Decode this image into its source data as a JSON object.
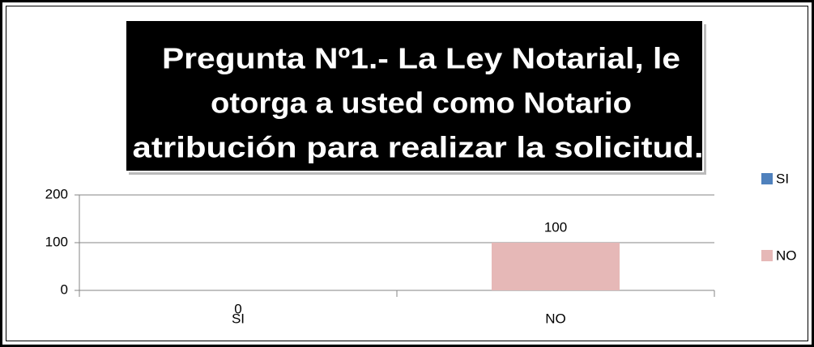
{
  "chart_data": {
    "type": "bar",
    "title": [
      "Pregunta Nº1.- La Ley Notarial, le",
      "otorga a usted como Notario",
      "atribución para realizar la solicitud."
    ],
    "categories": [
      "SI",
      "NO"
    ],
    "series": [
      {
        "name": "SI",
        "color": "#4f81bd",
        "values": [
          0,
          null
        ]
      },
      {
        "name": "NO",
        "color": "#e6b8b7",
        "values": [
          null,
          100
        ]
      }
    ],
    "ylim": [
      0,
      200
    ],
    "yticks": [
      0,
      100,
      200
    ],
    "grid": true,
    "legend": "right"
  }
}
